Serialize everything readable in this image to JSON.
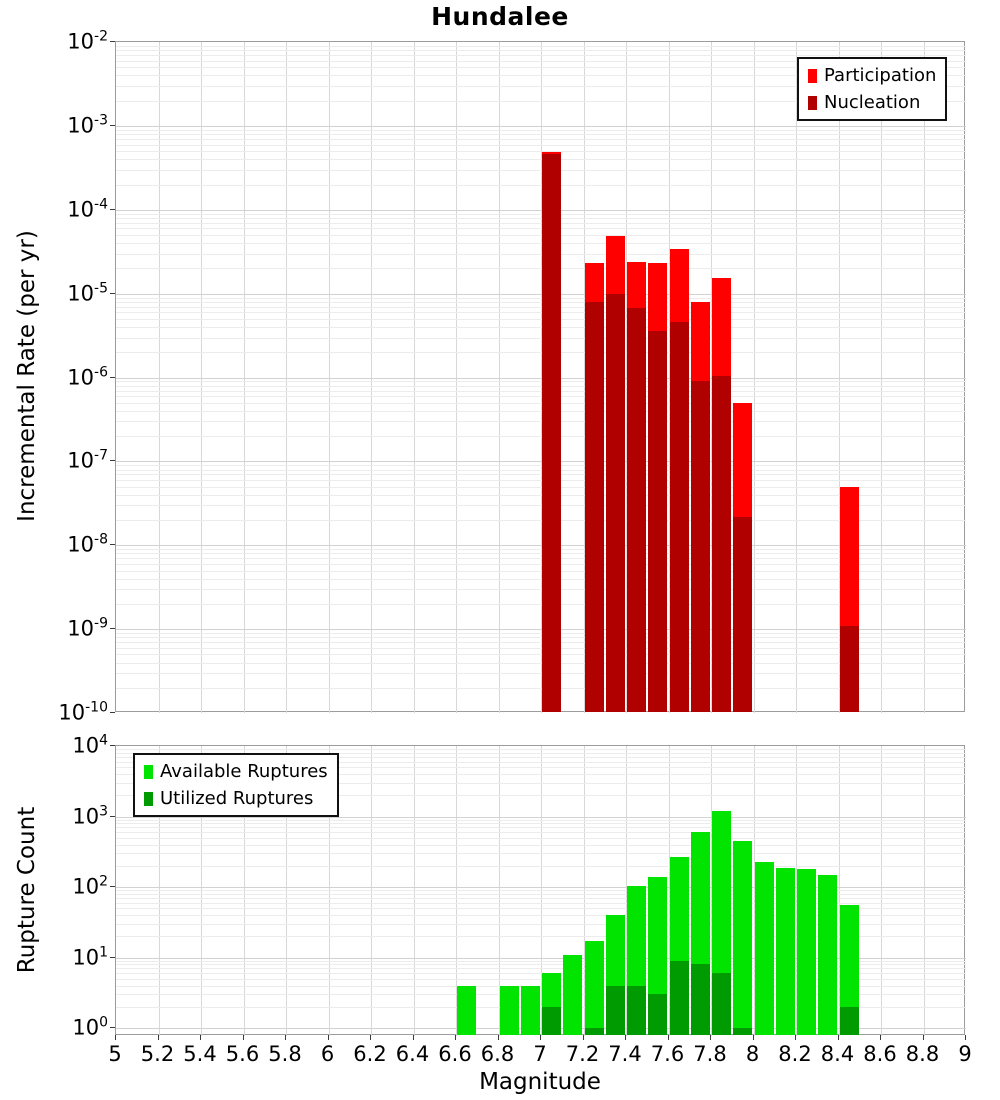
{
  "chart_data": [
    {
      "type": "bar",
      "panel": "top",
      "title": "Hundalee",
      "ylabel": "Incremental Rate (per yr)",
      "xlabel": "",
      "xlim": [
        5,
        9
      ],
      "ylim": [
        1e-10,
        0.01
      ],
      "y_scale": "log",
      "grid": true,
      "legend_position": "top-right",
      "y_tick_exponents": [
        -2,
        -3,
        -4,
        -5,
        -6,
        -7,
        -8,
        -9,
        -10
      ],
      "x_tick_labels": [
        "5",
        "5.2",
        "5.4",
        "5.6",
        "5.8",
        "6",
        "6.2",
        "6.4",
        "6.6",
        "6.8",
        "7",
        "7.2",
        "7.4",
        "7.6",
        "7.8",
        "8",
        "8.2",
        "8.4",
        "8.6",
        "8.8",
        "9"
      ],
      "bin_width": 0.1,
      "series": [
        {
          "name": "Participation",
          "color": "#FF0000",
          "bins": [
            [
              7.05,
              0.00049
            ],
            [
              7.25,
              2.3e-05
            ],
            [
              7.35,
              4.9e-05
            ],
            [
              7.45,
              2.4e-05
            ],
            [
              7.55,
              2.3e-05
            ],
            [
              7.65,
              3.4e-05
            ],
            [
              7.75,
              8e-06
            ],
            [
              7.85,
              1.55e-05
            ],
            [
              7.95,
              5e-07
            ],
            [
              8.45,
              4.9e-08
            ]
          ]
        },
        {
          "name": "Nucleation",
          "color": "#B00000",
          "bins": [
            [
              7.05,
              0.00046
            ],
            [
              7.25,
              8e-06
            ],
            [
              7.35,
              1e-05
            ],
            [
              7.45,
              6.7e-06
            ],
            [
              7.55,
              3.6e-06
            ],
            [
              7.65,
              4.6e-06
            ],
            [
              7.75,
              9e-07
            ],
            [
              7.85,
              1.05e-06
            ],
            [
              7.95,
              2.2e-08
            ],
            [
              8.45,
              1.1e-09
            ]
          ]
        }
      ]
    },
    {
      "type": "bar",
      "panel": "bottom",
      "title": "",
      "ylabel": "Rupture Count",
      "xlabel": "Magnitude",
      "xlim": [
        5,
        9
      ],
      "ylim": [
        1,
        10000
      ],
      "y_scale": "log",
      "grid": true,
      "legend_position": "top-left",
      "y_tick_exponents": [
        4,
        3,
        2,
        1,
        0
      ],
      "x_tick_labels": [
        "5",
        "5.2",
        "5.4",
        "5.6",
        "5.8",
        "6",
        "6.2",
        "6.4",
        "6.6",
        "6.8",
        "7",
        "7.2",
        "7.4",
        "7.6",
        "7.8",
        "8",
        "8.2",
        "8.4",
        "8.6",
        "8.8",
        "9"
      ],
      "bin_width": 0.1,
      "series": [
        {
          "name": "Available Ruptures",
          "color": "#00E400",
          "bins": [
            [
              6.65,
              4
            ],
            [
              6.85,
              4
            ],
            [
              6.95,
              4
            ],
            [
              7.05,
              6
            ],
            [
              7.15,
              11
            ],
            [
              7.25,
              17
            ],
            [
              7.35,
              40
            ],
            [
              7.45,
              105
            ],
            [
              7.55,
              140
            ],
            [
              7.65,
              270
            ],
            [
              7.75,
              600
            ],
            [
              7.85,
              1200
            ],
            [
              7.95,
              450
            ],
            [
              8.05,
              225
            ],
            [
              8.15,
              185
            ],
            [
              8.25,
              178
            ],
            [
              8.35,
              150
            ],
            [
              8.45,
              55
            ]
          ]
        },
        {
          "name": "Utilized Ruptures",
          "color": "#009B00",
          "bins": [
            [
              7.05,
              2
            ],
            [
              7.25,
              1
            ],
            [
              7.35,
              4
            ],
            [
              7.45,
              4
            ],
            [
              7.55,
              3
            ],
            [
              7.65,
              9
            ],
            [
              7.75,
              8
            ],
            [
              7.85,
              6
            ],
            [
              7.95,
              1
            ],
            [
              8.45,
              2
            ]
          ]
        }
      ]
    }
  ]
}
